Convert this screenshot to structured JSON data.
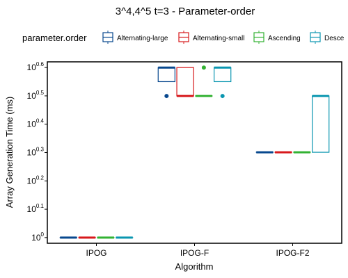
{
  "chart_data": {
    "type": "boxplot",
    "title": "3^4,4^5 t=3 - Parameter-order",
    "xlabel": "Algorithm",
    "ylabel": "Array Generation Time (ms)",
    "yscale": "log10",
    "ylim_exponent": [
      -0.02,
      0.62
    ],
    "y_ticks": [
      {
        "base": "10",
        "exp": "0"
      },
      {
        "base": "10",
        "exp": "0.1"
      },
      {
        "base": "10",
        "exp": "0.2"
      },
      {
        "base": "10",
        "exp": "0.3"
      },
      {
        "base": "10",
        "exp": "0.4"
      },
      {
        "base": "10",
        "exp": "0.5"
      },
      {
        "base": "10",
        "exp": "0.6"
      }
    ],
    "categories": [
      "IPOG",
      "IPOG-F",
      "IPOG-F2"
    ],
    "legend": {
      "title": "parameter.order",
      "position": "top"
    },
    "series": [
      {
        "name": "Alternating-large",
        "color": "#08488e",
        "boxes": [
          {
            "q1": 1,
            "median": 1,
            "q3": 1,
            "whisker_low": 1,
            "whisker_high": 1,
            "outliers": []
          },
          {
            "q1": 3.55,
            "median": 3.98,
            "q3": 3.98,
            "whisker_low": 3.55,
            "whisker_high": 3.98,
            "outliers": [
              3.16
            ]
          },
          {
            "q1": 2.0,
            "median": 2.0,
            "q3": 2.0,
            "whisker_low": 2.0,
            "whisker_high": 2.0,
            "outliers": []
          }
        ]
      },
      {
        "name": "Alternating-small",
        "color": "#d7191c",
        "boxes": [
          {
            "q1": 1,
            "median": 1,
            "q3": 1,
            "whisker_low": 1,
            "whisker_high": 1,
            "outliers": []
          },
          {
            "q1": 3.16,
            "median": 3.16,
            "q3": 3.98,
            "whisker_low": 3.16,
            "whisker_high": 3.98,
            "outliers": []
          },
          {
            "q1": 2.0,
            "median": 2.0,
            "q3": 2.0,
            "whisker_low": 2.0,
            "whisker_high": 2.0,
            "outliers": []
          }
        ]
      },
      {
        "name": "Ascending",
        "color": "#33b233",
        "boxes": [
          {
            "q1": 1,
            "median": 1,
            "q3": 1,
            "whisker_low": 1,
            "whisker_high": 1,
            "outliers": []
          },
          {
            "q1": 3.16,
            "median": 3.16,
            "q3": 3.16,
            "whisker_low": 3.16,
            "whisker_high": 3.16,
            "outliers": [
              3.98
            ]
          },
          {
            "q1": 2.0,
            "median": 2.0,
            "q3": 2.0,
            "whisker_low": 2.0,
            "whisker_high": 2.0,
            "outliers": []
          }
        ]
      },
      {
        "name": "Descending",
        "legend_visible_text": "Desce",
        "color": "#0a96b0",
        "boxes": [
          {
            "q1": 1,
            "median": 1,
            "q3": 1,
            "whisker_low": 1,
            "whisker_high": 1,
            "outliers": []
          },
          {
            "q1": 3.55,
            "median": 3.98,
            "q3": 3.98,
            "whisker_low": 3.55,
            "whisker_high": 3.98,
            "outliers": [
              3.16
            ]
          },
          {
            "q1": 2.0,
            "median": 3.16,
            "q3": 3.16,
            "whisker_low": 2.0,
            "whisker_high": 3.16,
            "outliers": []
          }
        ]
      }
    ]
  }
}
